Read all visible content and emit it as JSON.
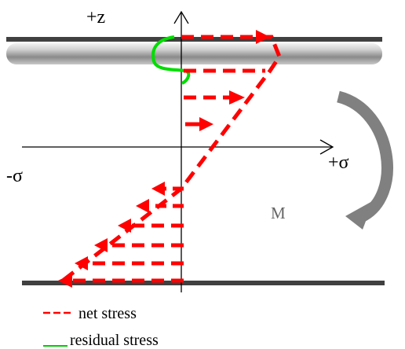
{
  "labels": {
    "z_axis": "+z",
    "sigma_positive": "+σ",
    "sigma_negative": "-σ",
    "moment": "M"
  },
  "legend": {
    "net_stress": "net stress",
    "residual_stress": "residual stress"
  },
  "colors": {
    "net_stress": "#ff0000",
    "residual_stress": "#00cc00",
    "moment_arrow": "#808080",
    "plate": "#404040",
    "axis": "#000000"
  }
}
